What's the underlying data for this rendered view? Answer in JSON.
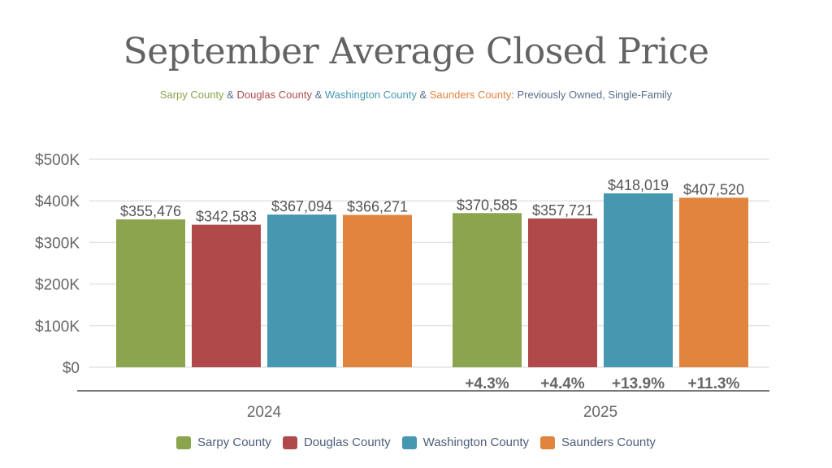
{
  "chart_data": {
    "type": "bar",
    "title": "September Average Closed Price",
    "subtitle_parts": [
      {
        "text": "Sarpy County",
        "color": "#8ba44d"
      },
      {
        "text": " & ",
        "color": "#5a6e8c"
      },
      {
        "text": "Douglas County",
        "color": "#b04a4a"
      },
      {
        "text": " & ",
        "color": "#5a6e8c"
      },
      {
        "text": "Washington County",
        "color": "#4598b0"
      },
      {
        "text": " & ",
        "color": "#5a6e8c"
      },
      {
        "text": "Saunders County",
        "color": "#e0843e"
      },
      {
        "text": ": Previously Owned, Single-Family",
        "color": "#5a6e8c"
      }
    ],
    "categories": [
      "2024",
      "2025"
    ],
    "ylim": [
      0,
      500000
    ],
    "yticks": [
      {
        "value": 0,
        "label": "$0"
      },
      {
        "value": 100000,
        "label": "$100K"
      },
      {
        "value": 200000,
        "label": "$200K"
      },
      {
        "value": 300000,
        "label": "$300K"
      },
      {
        "value": 400000,
        "label": "$400K"
      },
      {
        "value": 500000,
        "label": "$500K"
      }
    ],
    "grid": true,
    "legend_position": "bottom",
    "series": [
      {
        "name": "Sarpy County",
        "color": "#8ba44d",
        "values": [
          355476,
          370585
        ],
        "labels": [
          "$355,476",
          "$370,585"
        ],
        "change": "+4.3%"
      },
      {
        "name": "Douglas County",
        "color": "#b04a4a",
        "values": [
          342583,
          357721
        ],
        "labels": [
          "$342,583",
          "$357,721"
        ],
        "change": "+4.4%"
      },
      {
        "name": "Washington County",
        "color": "#4598b0",
        "values": [
          367094,
          418019
        ],
        "labels": [
          "$367,094",
          "$418,019"
        ],
        "change": "+13.9%"
      },
      {
        "name": "Saunders County",
        "color": "#e0843e",
        "values": [
          366271,
          407520
        ],
        "labels": [
          "$366,271",
          "$407,520"
        ],
        "change": "+11.3%"
      }
    ]
  }
}
